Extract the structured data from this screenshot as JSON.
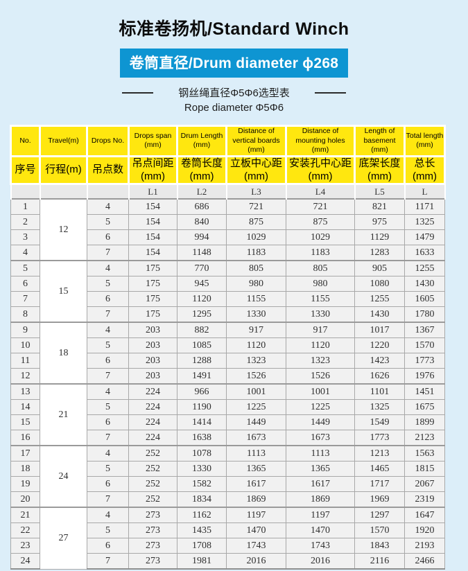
{
  "page": {
    "title": "标准卷扬机/Standard Winch",
    "banner": "卷筒直径/Drum diameter ϕ268",
    "subtitle_cn": "钢丝绳直径Φ5Φ6选型表",
    "subtitle_en": "Rope diameter Φ5Φ6"
  },
  "colors": {
    "page_background": "#DCEEF9",
    "banner_blue": "#0E95D2",
    "header_yellow": "#FFE70F",
    "sub_row_gray": "#E9E9E9",
    "cell_gray": "#F1F1F1"
  },
  "table": {
    "columns": [
      {
        "en": "No.",
        "cn": "序号",
        "sub": ""
      },
      {
        "en": "Travel(m)",
        "cn": "行程(m)",
        "sub": ""
      },
      {
        "en": "Drops No.",
        "cn": "吊点数",
        "sub": ""
      },
      {
        "en": "Drops span (mm)",
        "cn": "吊点间距 (mm)",
        "sub": "L1"
      },
      {
        "en": "Drum Length (mm)",
        "cn": "卷筒长度 (mm)",
        "sub": "L2"
      },
      {
        "en": "Distance of vertical boards (mm)",
        "cn": "立板中心距 (mm)",
        "sub": "L3"
      },
      {
        "en": "Distance of mounting holes (mm)",
        "cn": "安装孔中心距 (mm)",
        "sub": "L4"
      },
      {
        "en": "Length of basement (mm)",
        "cn": "底架长度 (mm)",
        "sub": "L5"
      },
      {
        "en": "Total length (mm)",
        "cn": "总长 (mm)",
        "sub": "L"
      }
    ],
    "groups": [
      {
        "travel": "12",
        "rows": [
          [
            "1",
            "4",
            "154",
            "686",
            "721",
            "721",
            "821",
            "1171"
          ],
          [
            "2",
            "5",
            "154",
            "840",
            "875",
            "875",
            "975",
            "1325"
          ],
          [
            "3",
            "6",
            "154",
            "994",
            "1029",
            "1029",
            "1129",
            "1479"
          ],
          [
            "4",
            "7",
            "154",
            "1148",
            "1183",
            "1183",
            "1283",
            "1633"
          ]
        ]
      },
      {
        "travel": "15",
        "rows": [
          [
            "5",
            "4",
            "175",
            "770",
            "805",
            "805",
            "905",
            "1255"
          ],
          [
            "6",
            "5",
            "175",
            "945",
            "980",
            "980",
            "1080",
            "1430"
          ],
          [
            "7",
            "6",
            "175",
            "1120",
            "1155",
            "1155",
            "1255",
            "1605"
          ],
          [
            "8",
            "7",
            "175",
            "1295",
            "1330",
            "1330",
            "1430",
            "1780"
          ]
        ]
      },
      {
        "travel": "18",
        "rows": [
          [
            "9",
            "4",
            "203",
            "882",
            "917",
            "917",
            "1017",
            "1367"
          ],
          [
            "10",
            "5",
            "203",
            "1085",
            "1120",
            "1120",
            "1220",
            "1570"
          ],
          [
            "11",
            "6",
            "203",
            "1288",
            "1323",
            "1323",
            "1423",
            "1773"
          ],
          [
            "12",
            "7",
            "203",
            "1491",
            "1526",
            "1526",
            "1626",
            "1976"
          ]
        ]
      },
      {
        "travel": "21",
        "rows": [
          [
            "13",
            "4",
            "224",
            "966",
            "1001",
            "1001",
            "1101",
            "1451"
          ],
          [
            "14",
            "5",
            "224",
            "1190",
            "1225",
            "1225",
            "1325",
            "1675"
          ],
          [
            "15",
            "6",
            "224",
            "1414",
            "1449",
            "1449",
            "1549",
            "1899"
          ],
          [
            "16",
            "7",
            "224",
            "1638",
            "1673",
            "1673",
            "1773",
            "2123"
          ]
        ]
      },
      {
        "travel": "24",
        "rows": [
          [
            "17",
            "4",
            "252",
            "1078",
            "1113",
            "1113",
            "1213",
            "1563"
          ],
          [
            "18",
            "5",
            "252",
            "1330",
            "1365",
            "1365",
            "1465",
            "1815"
          ],
          [
            "19",
            "6",
            "252",
            "1582",
            "1617",
            "1617",
            "1717",
            "2067"
          ],
          [
            "20",
            "7",
            "252",
            "1834",
            "1869",
            "1869",
            "1969",
            "2319"
          ]
        ]
      },
      {
        "travel": "27",
        "rows": [
          [
            "21",
            "4",
            "273",
            "1162",
            "1197",
            "1197",
            "1297",
            "1647"
          ],
          [
            "22",
            "5",
            "273",
            "1435",
            "1470",
            "1470",
            "1570",
            "1920"
          ],
          [
            "23",
            "6",
            "273",
            "1708",
            "1743",
            "1743",
            "1843",
            "2193"
          ],
          [
            "24",
            "7",
            "273",
            "1981",
            "2016",
            "2016",
            "2116",
            "2466"
          ]
        ]
      }
    ]
  }
}
